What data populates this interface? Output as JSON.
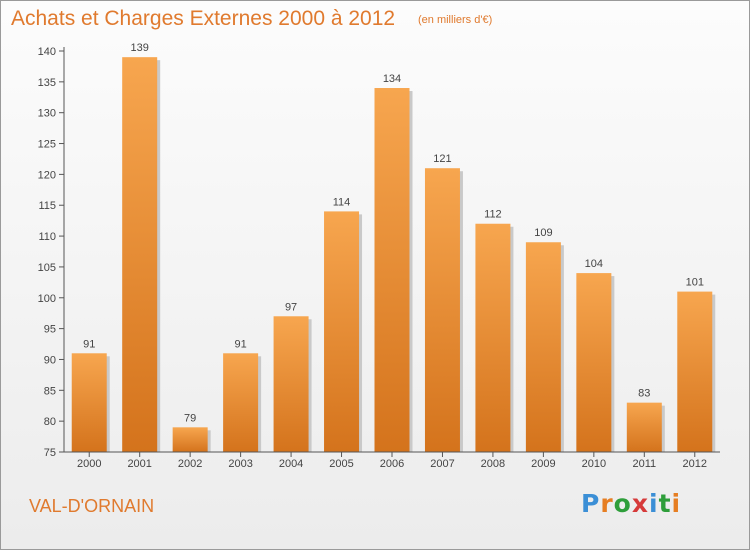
{
  "header": {
    "title": "Achats et Charges Externes 2000 à 2012",
    "unit": "(en milliers d'€)"
  },
  "footer": {
    "commune": "VAL-D'ORNAIN",
    "brand": [
      "P",
      "r",
      "o",
      "x",
      "i",
      "t",
      "i"
    ],
    "brand_colors": [
      "#3b8fd6",
      "#e67e22",
      "#2e9e3a",
      "#d63a3a",
      "#3b8fd6",
      "#2e9e3a",
      "#e67e22"
    ]
  },
  "chart_data": {
    "type": "bar",
    "title": "Achats et Charges Externes 2000 à 2012",
    "subtitle": "(en milliers d'€)",
    "categories": [
      "2000",
      "2001",
      "2002",
      "2003",
      "2004",
      "2005",
      "2006",
      "2007",
      "2008",
      "2009",
      "2010",
      "2011",
      "2012"
    ],
    "values": [
      91,
      139,
      79,
      91,
      97,
      114,
      134,
      121,
      112,
      109,
      104,
      83,
      101
    ],
    "ylim": [
      75,
      140
    ],
    "yticks": [
      75,
      80,
      85,
      90,
      95,
      100,
      105,
      110,
      115,
      120,
      125,
      130,
      135,
      140
    ],
    "grid": false,
    "bar_color_light": "#f7a64f",
    "bar_color_dark": "#d4731c",
    "axis_color": "#555555"
  }
}
